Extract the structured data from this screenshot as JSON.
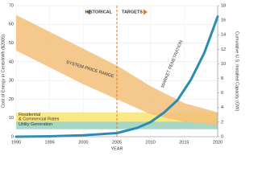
{
  "chart_data": {
    "type": "line",
    "header_left": "HISTORICAL",
    "header_right": "TARGETS",
    "xlabel": "YEAR",
    "ylabel": "Cost of Energy in Cents/kWh ($2005)",
    "y2label": "Cumulative U.S. Installed Capacity (GW)",
    "xlim": [
      1990,
      2020
    ],
    "xticks": [
      1990,
      1995,
      2000,
      2005,
      2010,
      2015,
      2020
    ],
    "ylim": [
      0,
      70
    ],
    "yticks": [
      0,
      10,
      20,
      30,
      40,
      50,
      60,
      70
    ],
    "y2lim": [
      0,
      18
    ],
    "y2ticks": [
      0,
      2,
      4,
      6,
      8,
      10,
      12,
      14,
      16,
      18
    ],
    "grid": true,
    "divider": 2005,
    "divider_color": "#e07b20",
    "bands": [
      {
        "label": [
          "Residential",
          "& Commercial Rates"
        ],
        "range": [
          7,
          13
        ],
        "color": "#f7e57a"
      },
      {
        "label": [
          "Utility Generation"
        ],
        "range": [
          4,
          8
        ],
        "color": "#9fd3c2"
      }
    ],
    "series": [
      {
        "name": "SYSTEM PRICE RANGE",
        "kind": "band",
        "color": "#f3c07a",
        "x": [
          1990,
          1995,
          2000,
          2005,
          2010,
          2015,
          2020
        ],
        "high": [
          65,
          56,
          47,
          38,
          27,
          18,
          13
        ],
        "low": [
          46,
          37,
          28,
          20,
          12,
          8,
          6
        ]
      },
      {
        "name": "MARKET PENETRATION",
        "kind": "line",
        "color": "#2a8cb0",
        "axis": "y2",
        "x": [
          1990,
          1995,
          2000,
          2005,
          2008,
          2010,
          2012,
          2014,
          2016,
          2018,
          2020
        ],
        "values": [
          0,
          0.05,
          0.2,
          0.5,
          1.2,
          2,
          3.3,
          5,
          7.8,
          11.5,
          16.5
        ]
      }
    ]
  }
}
